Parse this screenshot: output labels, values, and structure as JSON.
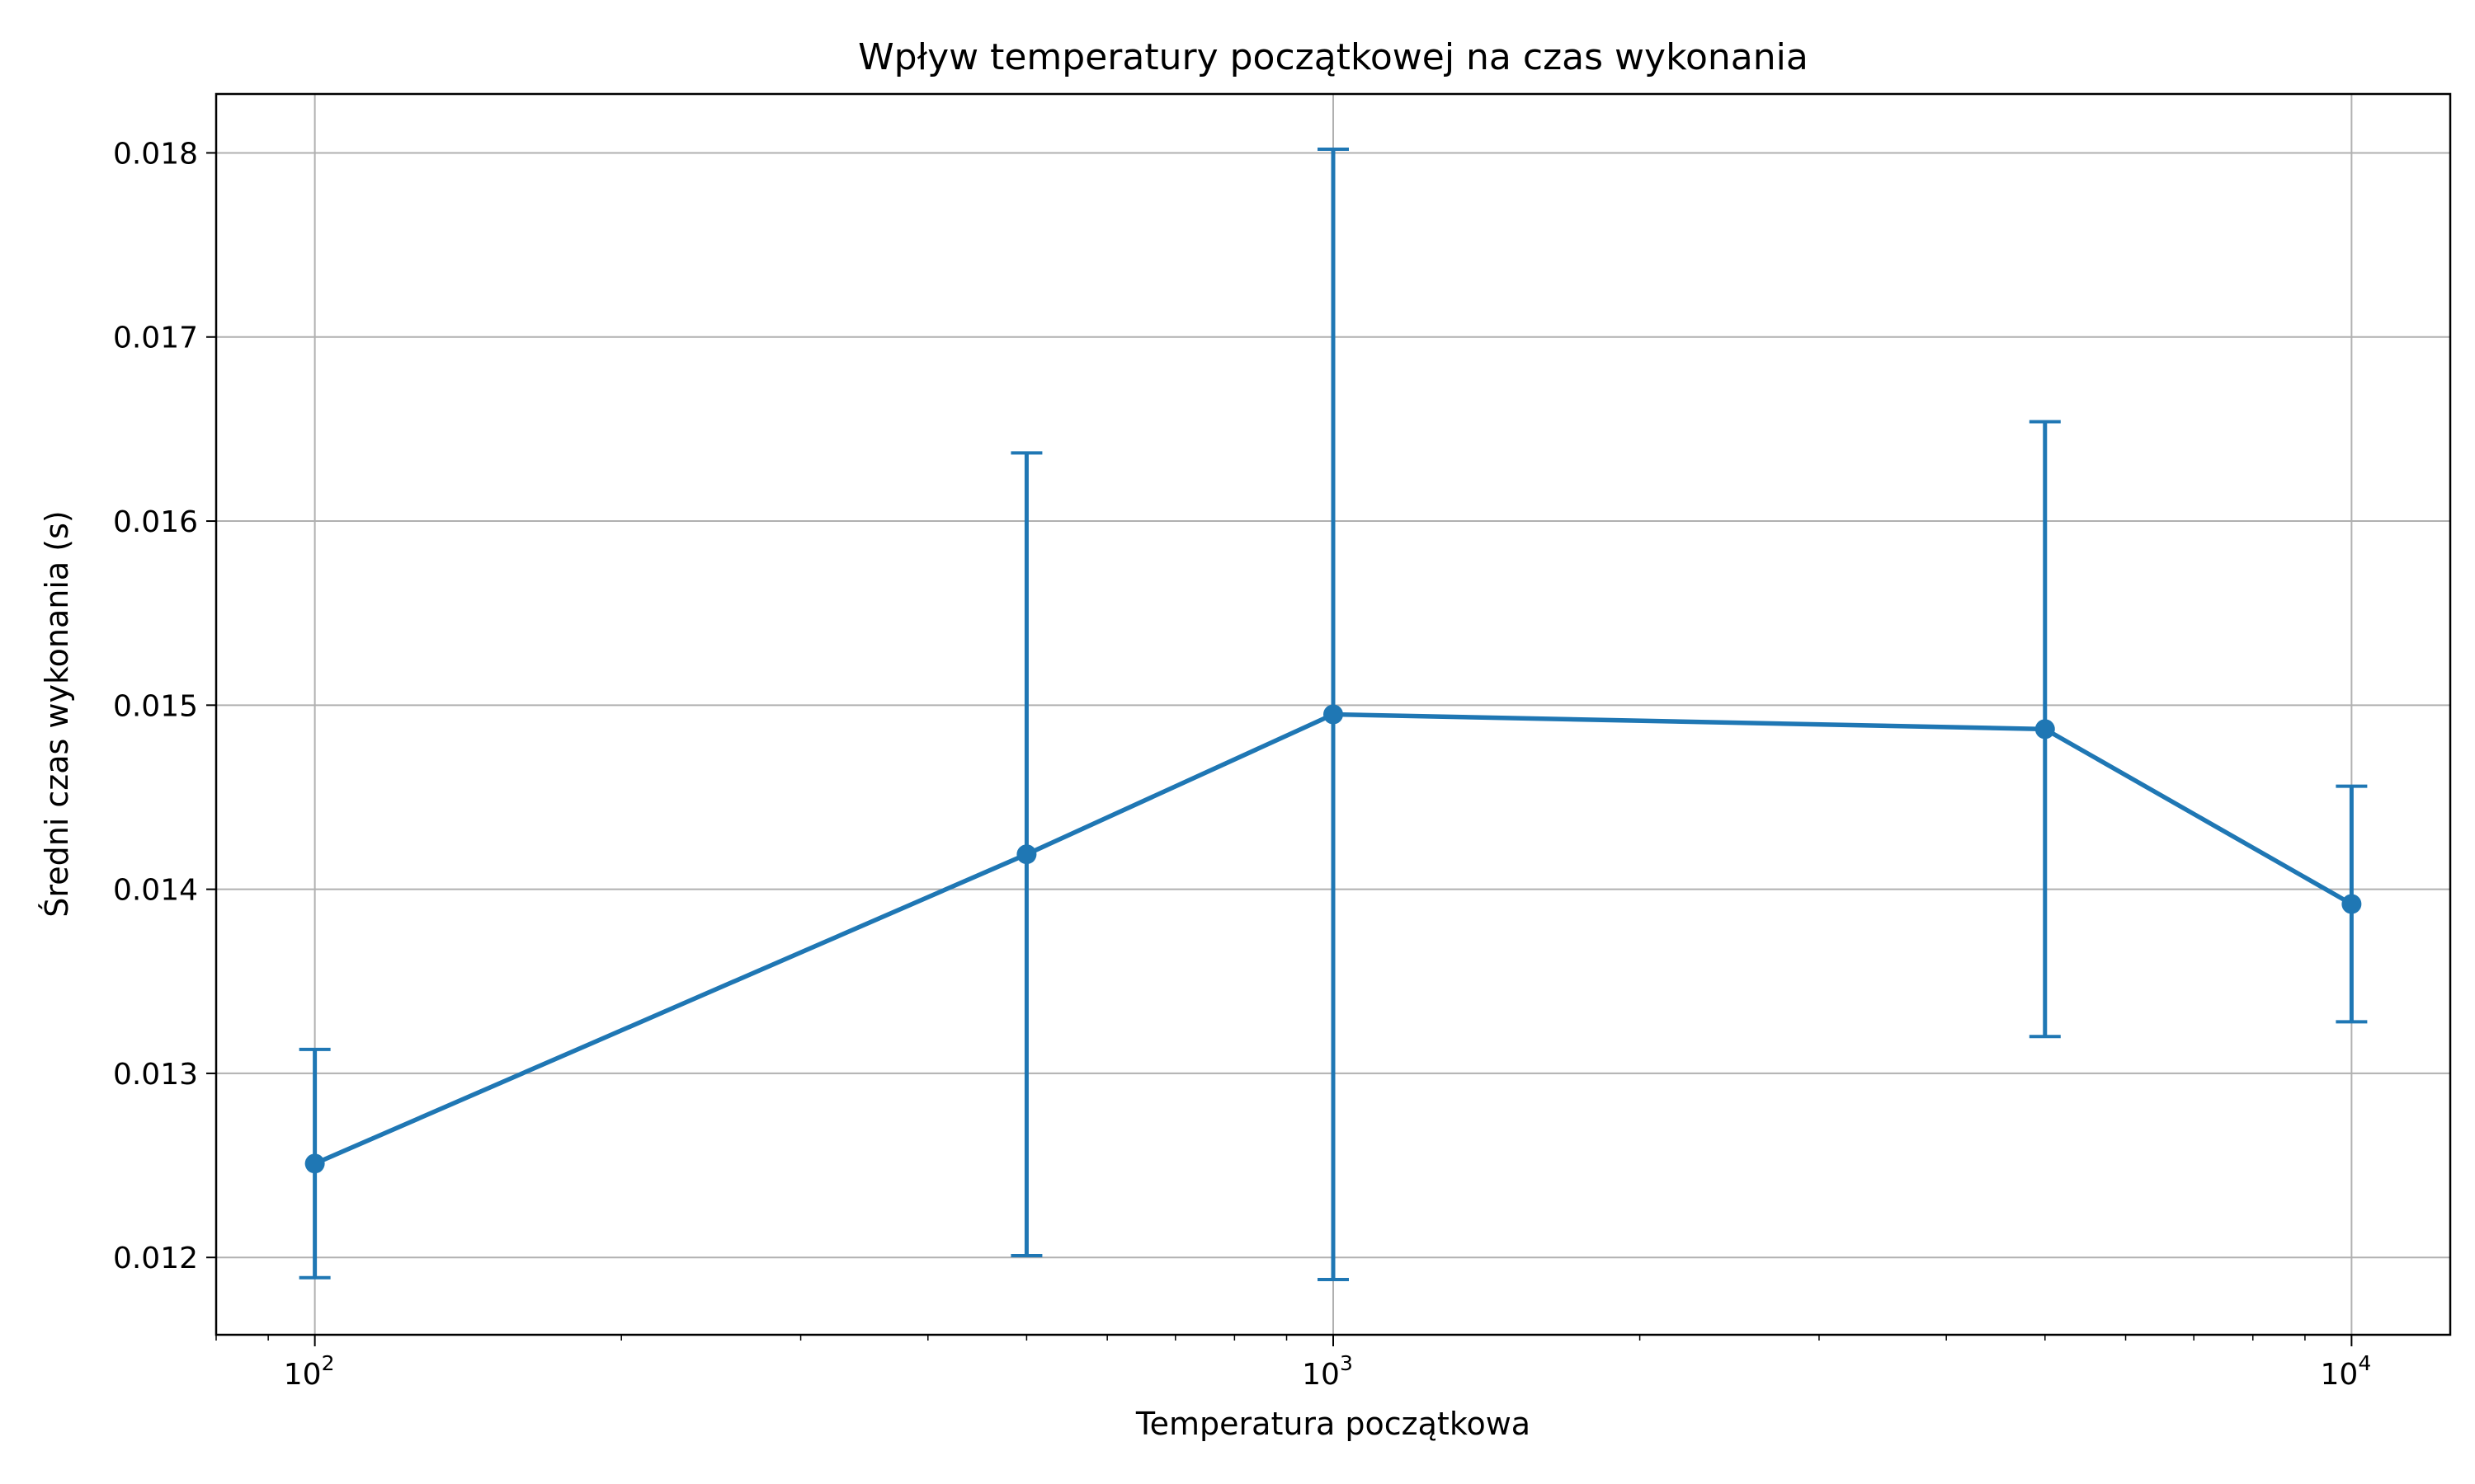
{
  "chart_data": {
    "type": "line",
    "title": "Wpływ temperatury początkowej na czas wykonania",
    "xlabel": "Temperatura początkowa",
    "ylabel": "Średni czas wykonania (s)",
    "x_scale": "log",
    "x": [
      100,
      500,
      1000,
      5000,
      10000
    ],
    "xlim": [
      80,
      12500
    ],
    "ylim": [
      0.01158,
      0.01832
    ],
    "x_ticks": [
      {
        "value": 100,
        "base": "10",
        "exp": "2"
      },
      {
        "value": 1000,
        "base": "10",
        "exp": "3"
      },
      {
        "value": 10000,
        "base": "10",
        "exp": "4"
      }
    ],
    "y_ticks": [
      {
        "value": 0.012,
        "label": "0.012"
      },
      {
        "value": 0.013,
        "label": "0.013"
      },
      {
        "value": 0.014,
        "label": "0.014"
      },
      {
        "value": 0.015,
        "label": "0.015"
      },
      {
        "value": 0.016,
        "label": "0.016"
      },
      {
        "value": 0.017,
        "label": "0.017"
      },
      {
        "value": 0.018,
        "label": "0.018"
      }
    ],
    "grid": true,
    "series": [
      {
        "values": [
          0.01251,
          0.01419,
          0.01495,
          0.01487,
          0.01392
        ],
        "yerr": [
          0.00062,
          0.00218,
          0.00307,
          0.00167,
          0.00064
        ],
        "color": "#1f77b4",
        "marker": "circle"
      }
    ]
  }
}
